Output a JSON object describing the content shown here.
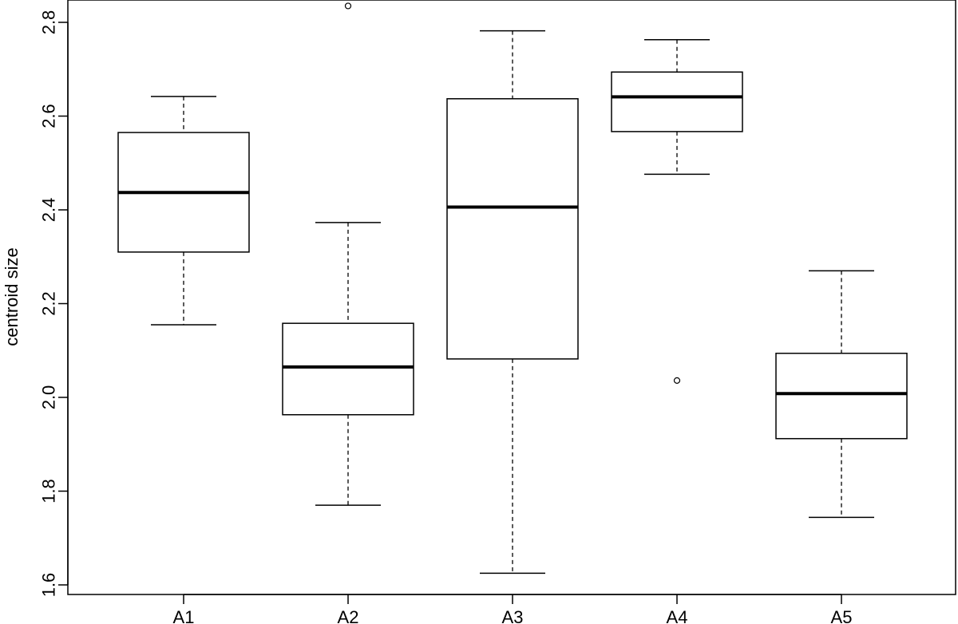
{
  "chart_data": {
    "type": "boxplot",
    "title": "",
    "xlabel": "",
    "ylabel": "centroid size",
    "ylim": [
      1.58,
      2.86
    ],
    "yticks": [
      1.6,
      1.8,
      2.0,
      2.2,
      2.4,
      2.6,
      2.8
    ],
    "ytick_labels": [
      "1.6",
      "1.8",
      "2.0",
      "2.2",
      "2.4",
      "2.6",
      "2.8"
    ],
    "categories": [
      "A1",
      "A2",
      "A3",
      "A4",
      "A5"
    ],
    "boxes": [
      {
        "name": "A1",
        "whisker_low": 2.155,
        "q1": 2.31,
        "median": 2.437,
        "q3": 2.565,
        "whisker_high": 2.642,
        "outliers": []
      },
      {
        "name": "A2",
        "whisker_low": 1.77,
        "q1": 1.963,
        "median": 2.065,
        "q3": 2.158,
        "whisker_high": 2.373,
        "outliers": [
          2.835
        ]
      },
      {
        "name": "A3",
        "whisker_low": 1.625,
        "q1": 2.082,
        "median": 2.406,
        "q3": 2.637,
        "whisker_high": 2.782,
        "outliers": []
      },
      {
        "name": "A4",
        "whisker_low": 2.476,
        "q1": 2.567,
        "median": 2.641,
        "q3": 2.694,
        "whisker_high": 2.763,
        "outliers": [
          2.036
        ]
      },
      {
        "name": "A5",
        "whisker_low": 1.744,
        "q1": 1.912,
        "median": 2.008,
        "q3": 2.094,
        "whisker_high": 2.27,
        "outliers": []
      }
    ],
    "grid": false,
    "legend": "none",
    "colors": {
      "box_fill": "#ffffff",
      "stroke": "#000000"
    }
  }
}
